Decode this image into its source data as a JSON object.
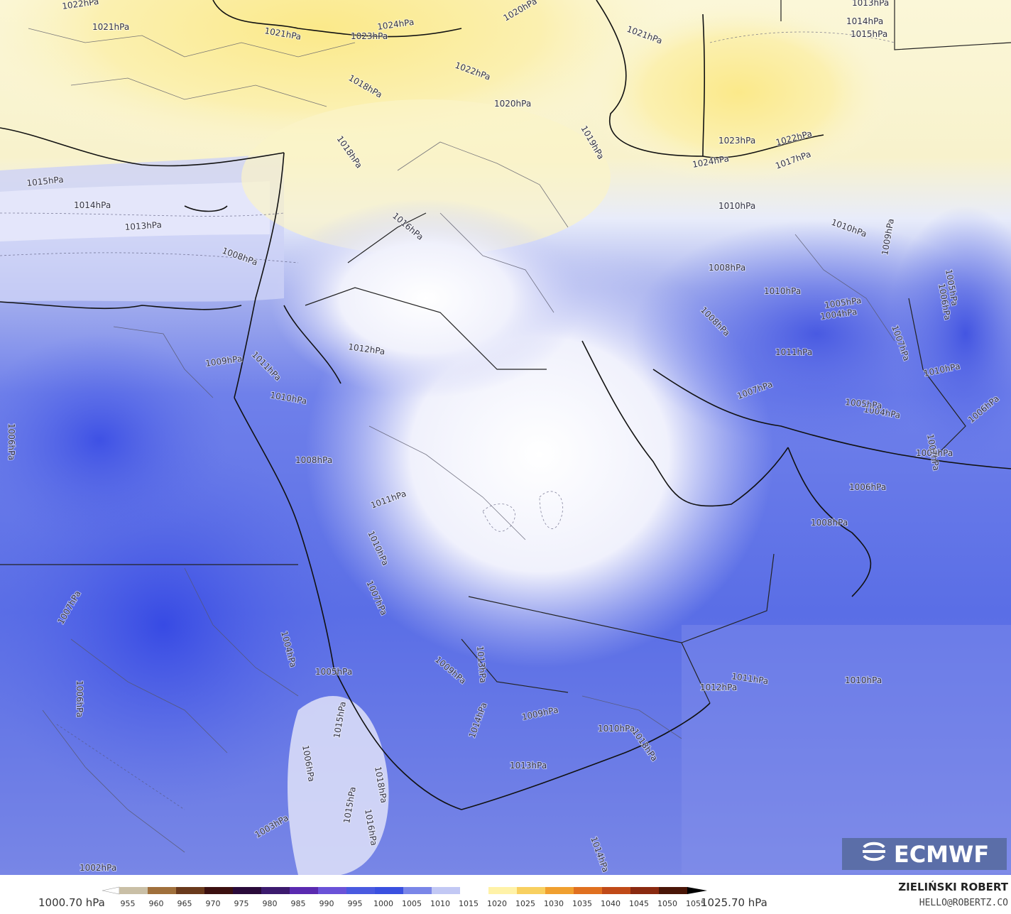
{
  "map": {
    "isobar_labels": [
      "1022hPa",
      "1021hPa",
      "1021hPa",
      "1023hPa",
      "1024hPa",
      "1020hPa",
      "1021hPa",
      "1013hPa",
      "1014hPa",
      "1015hPa",
      "1022hPa",
      "1018hPa",
      "1020hPa",
      "1019hPa",
      "1023hPa",
      "1022hPa",
      "1024hPa",
      "1017hPa",
      "1015hPa",
      "1014hPa",
      "1013hPa",
      "1016hPa",
      "1018hPa",
      "1010hPa",
      "1010hPa",
      "1008hPa",
      "1010hPa",
      "1005hPa",
      "1004hPa",
      "1008hPa",
      "1011hPa",
      "1007hPa",
      "1009hPa",
      "1005hPa",
      "1006hPa",
      "1006hPa",
      "1004hPa",
      "1005hPa",
      "1007hPa",
      "1005hPa",
      "1008hPa",
      "1009hPa",
      "1011hPa",
      "1012hPa",
      "1010hPa",
      "1008hPa",
      "1006hPa",
      "1011hPa",
      "1010hPa",
      "1007hPa",
      "1007hPa",
      "1004hPa",
      "1005hPa",
      "1006hPa",
      "1009hPa",
      "1013hPa",
      "1014hPa",
      "1015hPa",
      "1011hPa",
      "1012hPa",
      "1010hPa",
      "1009hPa",
      "1010hPa",
      "1013hPa",
      "1013hPa",
      "1006hPa",
      "1007hPa",
      "1003hPa",
      "1002hPa",
      "1008hPa",
      "1010hPa",
      "1018hPa",
      "1016hPa",
      "1015hPa",
      "1006hPa",
      "1014hPa"
    ]
  },
  "logo": {
    "text": "ECMWF"
  },
  "colorbar": {
    "min_label": "1000.70 hPa",
    "max_label": "1025.70 hPa",
    "ticks": [
      "955",
      "960",
      "965",
      "970",
      "975",
      "980",
      "985",
      "990",
      "995",
      "1000",
      "1005",
      "1010",
      "1015",
      "1020",
      "1025",
      "1030",
      "1035",
      "1040",
      "1045",
      "1050",
      "1055"
    ],
    "colors": [
      "#c9bfa6",
      "#a0703c",
      "#6a3a1c",
      "#3c1010",
      "#2a0a3a",
      "#3c1a6e",
      "#5a2ab0",
      "#6a52d8",
      "#4a5ae0",
      "#3a50e0",
      "#7a86e8",
      "#c2c8f4",
      "#ffffff",
      "#fff2a8",
      "#f8d060",
      "#f0a030",
      "#e07020",
      "#c04a18",
      "#8a2a10",
      "#4a1608"
    ]
  },
  "credit": {
    "author": "ZIELIŃSKI ROBERT",
    "email": "HELLO@ROBERTZ.CO"
  }
}
